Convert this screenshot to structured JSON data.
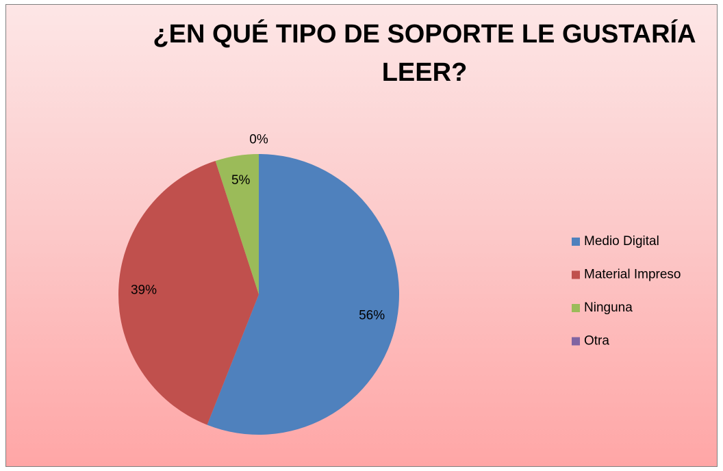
{
  "chart_data": {
    "type": "pie",
    "title": "¿EN QUÉ TIPO DE SOPORTE LE GUSTARÍA LEER?",
    "categories": [
      "Medio Digital",
      "Material Impreso",
      "Ninguna",
      "Otra"
    ],
    "values": [
      56,
      39,
      5,
      0
    ],
    "value_labels": [
      "56%",
      "39%",
      "5%",
      "0%"
    ],
    "colors": [
      "#4f81bd",
      "#c0504d",
      "#9bbb59",
      "#8064a2"
    ],
    "legend": "right"
  }
}
